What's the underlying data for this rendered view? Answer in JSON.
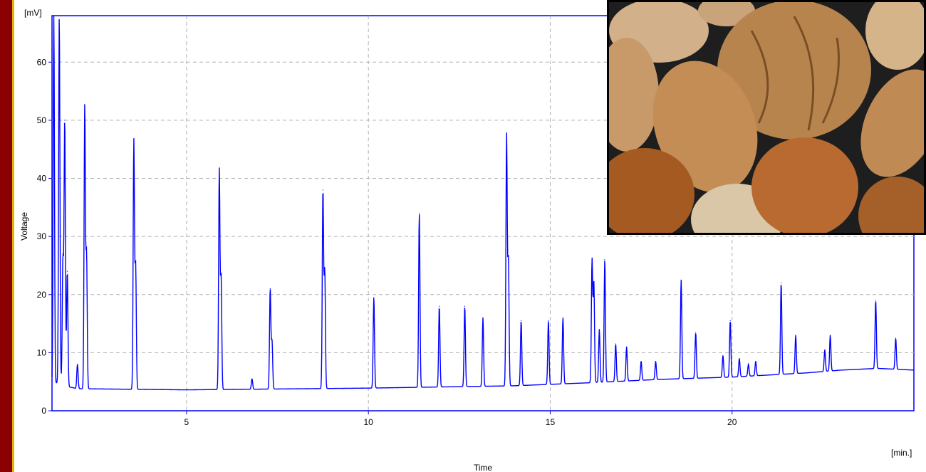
{
  "chart_data": {
    "type": "line",
    "xlabel": "Time",
    "x_unit": "[min.]",
    "ylabel": "Voltage",
    "y_unit": "[mV]",
    "xlim": [
      1.3,
      25
    ],
    "ylim": [
      0,
      68
    ],
    "xticks": [
      5,
      10,
      15,
      20
    ],
    "yticks": [
      0,
      10,
      20,
      30,
      40,
      50,
      60
    ],
    "grid": true,
    "series_color": "#0000ff",
    "baseline": [
      [
        1.3,
        4.5
      ],
      [
        1.5,
        5.0
      ],
      [
        1.7,
        4.2
      ],
      [
        2.0,
        3.8
      ],
      [
        5.0,
        3.6
      ],
      [
        10.0,
        3.9
      ],
      [
        12.0,
        4.1
      ],
      [
        14.0,
        4.3
      ],
      [
        16.0,
        4.8
      ],
      [
        18.0,
        5.4
      ],
      [
        20.0,
        5.8
      ],
      [
        22.0,
        6.5
      ],
      [
        23.0,
        7.0
      ],
      [
        24.0,
        7.3
      ],
      [
        25.0,
        7.0
      ]
    ],
    "peaks": [
      {
        "x": 1.35,
        "y": 68.0
      },
      {
        "x": 1.5,
        "y": 68.0
      },
      {
        "x": 1.6,
        "y": 26.0
      },
      {
        "x": 1.65,
        "y": 50.0
      },
      {
        "x": 1.72,
        "y": 24.0
      },
      {
        "x": 2.0,
        "y": 8.0
      },
      {
        "x": 2.2,
        "y": 52.5
      },
      {
        "x": 2.25,
        "y": 27.0
      },
      {
        "x": 3.55,
        "y": 46.5
      },
      {
        "x": 3.6,
        "y": 25.0
      },
      {
        "x": 5.9,
        "y": 41.5
      },
      {
        "x": 5.95,
        "y": 23.0
      },
      {
        "x": 6.8,
        "y": 5.5
      },
      {
        "x": 7.3,
        "y": 21.0
      },
      {
        "x": 7.35,
        "y": 12.0
      },
      {
        "x": 8.75,
        "y": 38.0
      },
      {
        "x": 8.8,
        "y": 24.0
      },
      {
        "x": 10.15,
        "y": 19.5
      },
      {
        "x": 11.4,
        "y": 34.0
      },
      {
        "x": 11.95,
        "y": 18.0
      },
      {
        "x": 12.65,
        "y": 18.0
      },
      {
        "x": 13.15,
        "y": 16.0
      },
      {
        "x": 13.8,
        "y": 47.5
      },
      {
        "x": 13.85,
        "y": 26.0
      },
      {
        "x": 14.2,
        "y": 15.5
      },
      {
        "x": 14.95,
        "y": 15.5
      },
      {
        "x": 15.35,
        "y": 16.0
      },
      {
        "x": 16.15,
        "y": 26.0
      },
      {
        "x": 16.2,
        "y": 22.0
      },
      {
        "x": 16.35,
        "y": 14.0
      },
      {
        "x": 16.5,
        "y": 26.0
      },
      {
        "x": 16.8,
        "y": 11.5
      },
      {
        "x": 17.1,
        "y": 11.0
      },
      {
        "x": 17.5,
        "y": 8.5
      },
      {
        "x": 17.9,
        "y": 8.5
      },
      {
        "x": 18.6,
        "y": 22.5
      },
      {
        "x": 19.0,
        "y": 13.5
      },
      {
        "x": 19.75,
        "y": 9.5
      },
      {
        "x": 19.95,
        "y": 15.5
      },
      {
        "x": 20.2,
        "y": 9.0
      },
      {
        "x": 20.45,
        "y": 8.0
      },
      {
        "x": 20.65,
        "y": 8.5
      },
      {
        "x": 21.35,
        "y": 22.0
      },
      {
        "x": 21.75,
        "y": 13.0
      },
      {
        "x": 22.55,
        "y": 10.5
      },
      {
        "x": 22.7,
        "y": 13.0
      },
      {
        "x": 23.95,
        "y": 19.0
      },
      {
        "x": 24.5,
        "y": 12.5
      }
    ]
  },
  "photo": {
    "subject": "mixed nuts (walnut, almonds, hazelnuts)",
    "colors": {
      "walnut": "#b07a45",
      "almond": "#c99a66",
      "hazelnut": "#a85a22",
      "background": "#1e1e1e"
    }
  }
}
